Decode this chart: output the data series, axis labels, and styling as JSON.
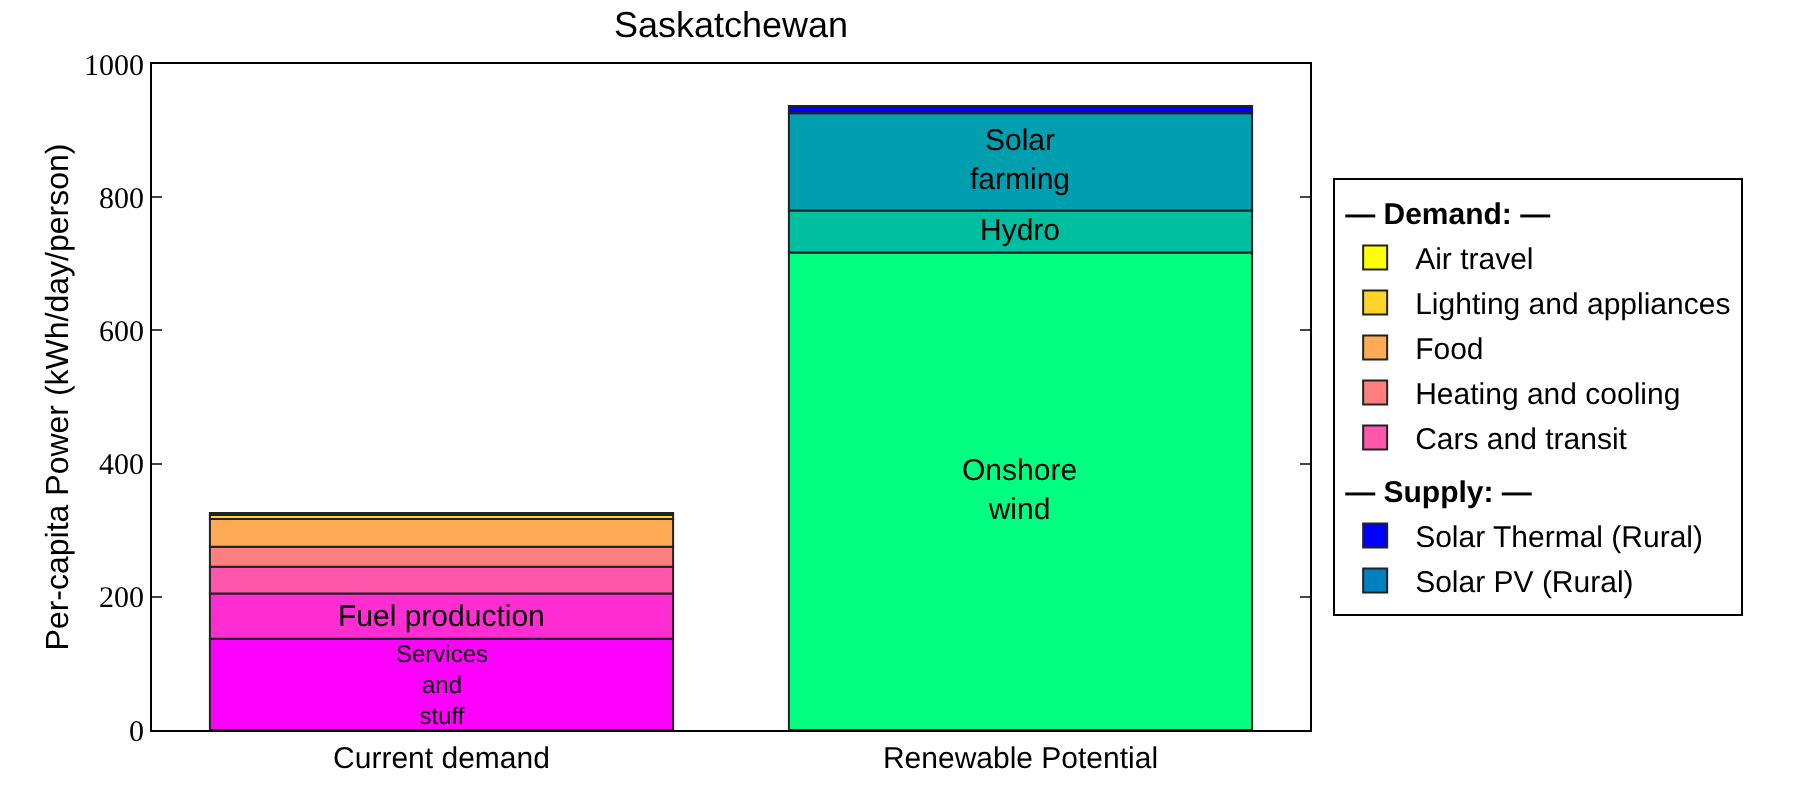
{
  "chart_data": {
    "type": "bar",
    "title": "Saskatchewan",
    "ylabel": "Per-capita Power (kWh/day/person)",
    "categories": [
      "Current demand",
      "Renewable Potential"
    ],
    "stacked": true,
    "series": [
      {
        "name": "Services\nand\nstuff",
        "color": "#ff00ff",
        "values": [
          137,
          null
        ]
      },
      {
        "name": "Fuel production",
        "color": "#ff2dd2",
        "values": [
          68,
          null
        ]
      },
      {
        "name": "Cars and transit",
        "color": "#ff55aa",
        "values": [
          40,
          null
        ]
      },
      {
        "name": "Heating and cooling",
        "color": "#ff7f7f",
        "values": [
          30,
          null
        ]
      },
      {
        "name": "Food",
        "color": "#ffaa55",
        "values": [
          42,
          null
        ]
      },
      {
        "name": "Lighting and appliances",
        "color": "#ffd42a",
        "values": [
          6,
          null
        ]
      },
      {
        "name": "Air travel",
        "color": "#ffff00",
        "values": [
          3,
          null
        ]
      },
      {
        "name": "Onshore\nwind",
        "color": "#00ff80",
        "values": [
          null,
          717
        ]
      },
      {
        "name": "Hydro",
        "color": "#00bfa0",
        "values": [
          null,
          63
        ]
      },
      {
        "name": "Solar\nfarming",
        "color": "#009fb0",
        "values": [
          null,
          146
        ]
      },
      {
        "name": "Solar PV (Rural)",
        "color": "#0080bf",
        "values": [
          null,
          null
        ]
      },
      {
        "name": "Solar Thermal (Rural)",
        "color": "#0000ff",
        "values": [
          null,
          11
        ]
      }
    ],
    "annotations": [
      "— Demand: —",
      "— Supply: —"
    ],
    "ylim": [
      0,
      1000
    ],
    "yticks": [
      0,
      200,
      400,
      600,
      800,
      1000
    ],
    "grid": false,
    "legend": "right"
  }
}
